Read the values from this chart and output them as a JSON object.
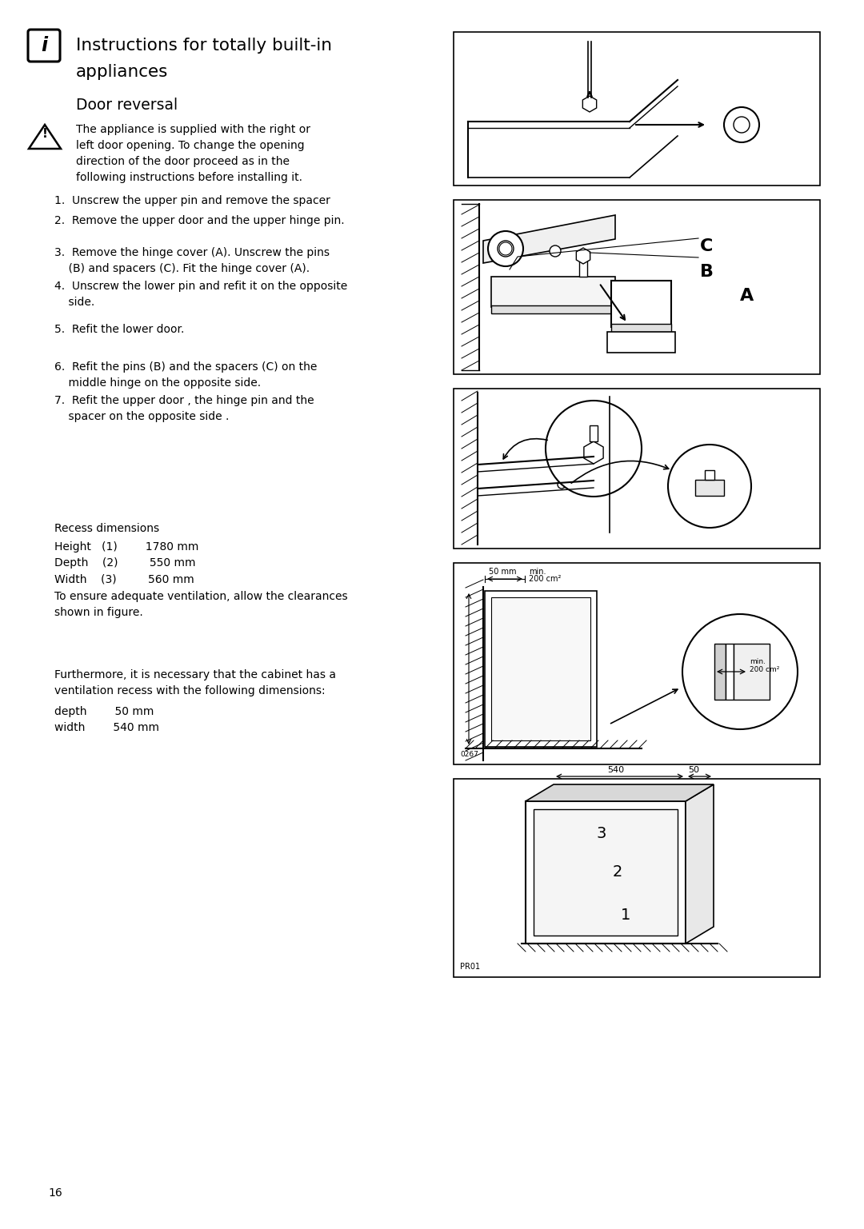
{
  "bg_color": "#ffffff",
  "page_number": "16",
  "title_line1": "Instructions for totally built-in",
  "title_line2": "appliances",
  "subtitle": "Door reversal",
  "warning_text_lines": [
    "The appliance is supplied with the right or",
    "left door opening. To change the opening",
    "direction of the door proceed as in the",
    "following instructions before installing it."
  ],
  "step1": "1.  Unscrew the upper pin and remove the spacer",
  "step2": "2.  Remove the upper door and the upper hinge pin.",
  "step3a": "3.  Remove the hinge cover (A). Unscrew the pins",
  "step3b": "    (B) and spacers (C). Fit the hinge cover (A).",
  "step4a": "4.  Unscrew the lower pin and refit it on the opposite",
  "step4b": "    side.",
  "step5": "5.  Refit the lower door.",
  "step6a": "6.  Refit the pins (B) and the spacers (C) on the",
  "step6b": "    middle hinge on the opposite side.",
  "step7a": "7.  Refit the upper door , the hinge pin and the",
  "step7b": "    spacer on the opposite side .",
  "recess_title": "Recess dimensions",
  "recess_height": "Height   (1)        1780 mm",
  "recess_depth": "Depth    (2)         550 mm",
  "recess_width": "Width    (3)         560 mm",
  "recess_note1": "To ensure adequate ventilation, allow the clearances",
  "recess_note2": "shown in figure.",
  "further1": "Furthermore, it is necessary that the cabinet has a",
  "further2": "ventilation recess with the following dimensions:",
  "further_depth": "depth        50 mm",
  "further_width": "width        540 mm",
  "text_color": "#000000",
  "gray_fill": "#e8e8e8",
  "light_gray": "#f0f0f0"
}
